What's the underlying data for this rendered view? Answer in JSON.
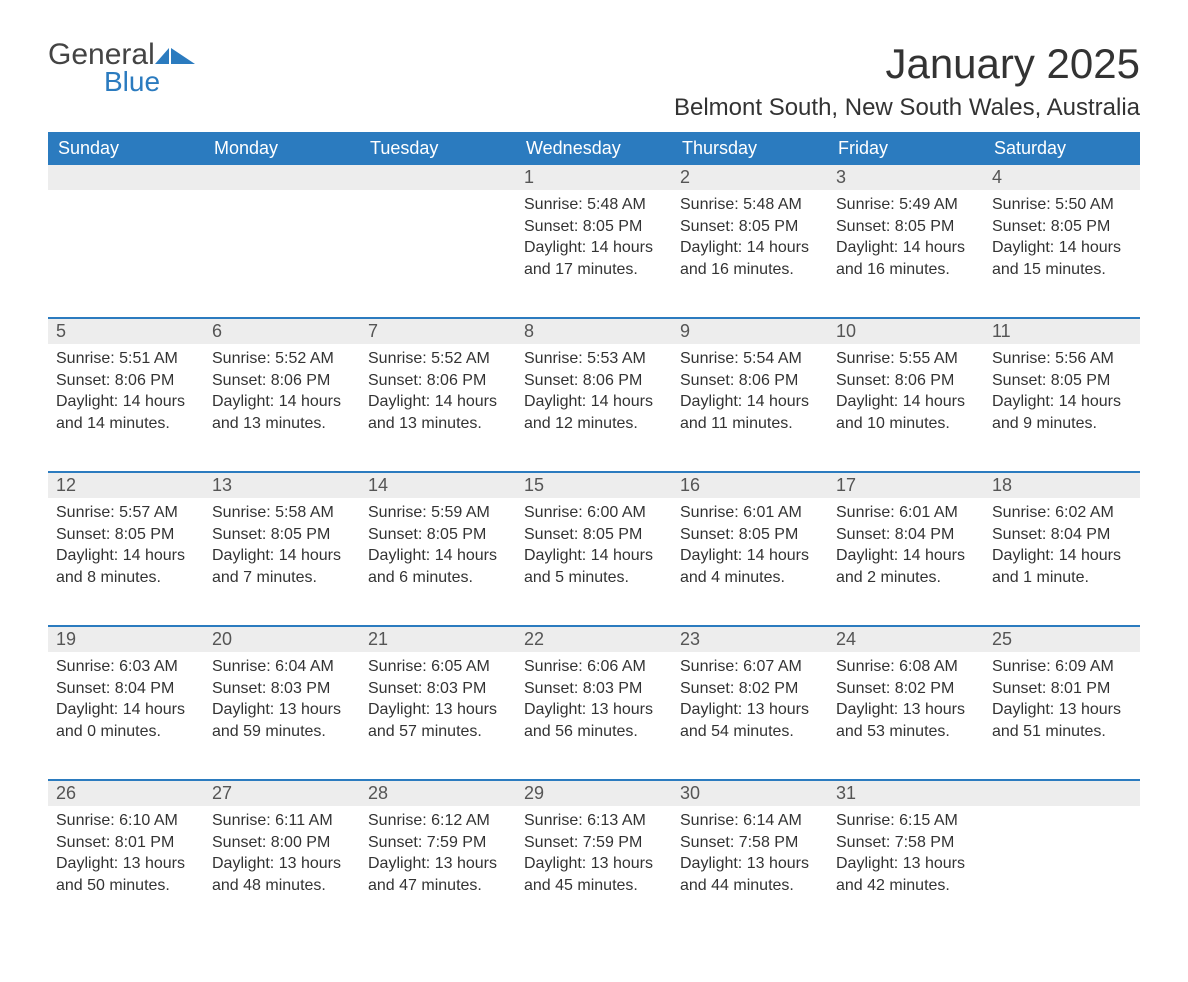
{
  "logo": {
    "word1": "General",
    "word2": "Blue"
  },
  "title": "January 2025",
  "location": "Belmont South, New South Wales, Australia",
  "colors": {
    "header_bg": "#2b7bbf",
    "header_text": "#ffffff",
    "daynum_bg": "#ededed",
    "week_divider": "#2b7bbf",
    "body_text": "#333333",
    "logo_blue": "#2b7bbf"
  },
  "day_headers": [
    "Sunday",
    "Monday",
    "Tuesday",
    "Wednesday",
    "Thursday",
    "Friday",
    "Saturday"
  ],
  "weeks": [
    [
      null,
      null,
      null,
      {
        "n": "1",
        "sunrise": "5:48 AM",
        "sunset": "8:05 PM",
        "daylight": "14 hours and 17 minutes."
      },
      {
        "n": "2",
        "sunrise": "5:48 AM",
        "sunset": "8:05 PM",
        "daylight": "14 hours and 16 minutes."
      },
      {
        "n": "3",
        "sunrise": "5:49 AM",
        "sunset": "8:05 PM",
        "daylight": "14 hours and 16 minutes."
      },
      {
        "n": "4",
        "sunrise": "5:50 AM",
        "sunset": "8:05 PM",
        "daylight": "14 hours and 15 minutes."
      }
    ],
    [
      {
        "n": "5",
        "sunrise": "5:51 AM",
        "sunset": "8:06 PM",
        "daylight": "14 hours and 14 minutes."
      },
      {
        "n": "6",
        "sunrise": "5:52 AM",
        "sunset": "8:06 PM",
        "daylight": "14 hours and 13 minutes."
      },
      {
        "n": "7",
        "sunrise": "5:52 AM",
        "sunset": "8:06 PM",
        "daylight": "14 hours and 13 minutes."
      },
      {
        "n": "8",
        "sunrise": "5:53 AM",
        "sunset": "8:06 PM",
        "daylight": "14 hours and 12 minutes."
      },
      {
        "n": "9",
        "sunrise": "5:54 AM",
        "sunset": "8:06 PM",
        "daylight": "14 hours and 11 minutes."
      },
      {
        "n": "10",
        "sunrise": "5:55 AM",
        "sunset": "8:06 PM",
        "daylight": "14 hours and 10 minutes."
      },
      {
        "n": "11",
        "sunrise": "5:56 AM",
        "sunset": "8:05 PM",
        "daylight": "14 hours and 9 minutes."
      }
    ],
    [
      {
        "n": "12",
        "sunrise": "5:57 AM",
        "sunset": "8:05 PM",
        "daylight": "14 hours and 8 minutes."
      },
      {
        "n": "13",
        "sunrise": "5:58 AM",
        "sunset": "8:05 PM",
        "daylight": "14 hours and 7 minutes."
      },
      {
        "n": "14",
        "sunrise": "5:59 AM",
        "sunset": "8:05 PM",
        "daylight": "14 hours and 6 minutes."
      },
      {
        "n": "15",
        "sunrise": "6:00 AM",
        "sunset": "8:05 PM",
        "daylight": "14 hours and 5 minutes."
      },
      {
        "n": "16",
        "sunrise": "6:01 AM",
        "sunset": "8:05 PM",
        "daylight": "14 hours and 4 minutes."
      },
      {
        "n": "17",
        "sunrise": "6:01 AM",
        "sunset": "8:04 PM",
        "daylight": "14 hours and 2 minutes."
      },
      {
        "n": "18",
        "sunrise": "6:02 AM",
        "sunset": "8:04 PM",
        "daylight": "14 hours and 1 minute."
      }
    ],
    [
      {
        "n": "19",
        "sunrise": "6:03 AM",
        "sunset": "8:04 PM",
        "daylight": "14 hours and 0 minutes."
      },
      {
        "n": "20",
        "sunrise": "6:04 AM",
        "sunset": "8:03 PM",
        "daylight": "13 hours and 59 minutes."
      },
      {
        "n": "21",
        "sunrise": "6:05 AM",
        "sunset": "8:03 PM",
        "daylight": "13 hours and 57 minutes."
      },
      {
        "n": "22",
        "sunrise": "6:06 AM",
        "sunset": "8:03 PM",
        "daylight": "13 hours and 56 minutes."
      },
      {
        "n": "23",
        "sunrise": "6:07 AM",
        "sunset": "8:02 PM",
        "daylight": "13 hours and 54 minutes."
      },
      {
        "n": "24",
        "sunrise": "6:08 AM",
        "sunset": "8:02 PM",
        "daylight": "13 hours and 53 minutes."
      },
      {
        "n": "25",
        "sunrise": "6:09 AM",
        "sunset": "8:01 PM",
        "daylight": "13 hours and 51 minutes."
      }
    ],
    [
      {
        "n": "26",
        "sunrise": "6:10 AM",
        "sunset": "8:01 PM",
        "daylight": "13 hours and 50 minutes."
      },
      {
        "n": "27",
        "sunrise": "6:11 AM",
        "sunset": "8:00 PM",
        "daylight": "13 hours and 48 minutes."
      },
      {
        "n": "28",
        "sunrise": "6:12 AM",
        "sunset": "7:59 PM",
        "daylight": "13 hours and 47 minutes."
      },
      {
        "n": "29",
        "sunrise": "6:13 AM",
        "sunset": "7:59 PM",
        "daylight": "13 hours and 45 minutes."
      },
      {
        "n": "30",
        "sunrise": "6:14 AM",
        "sunset": "7:58 PM",
        "daylight": "13 hours and 44 minutes."
      },
      {
        "n": "31",
        "sunrise": "6:15 AM",
        "sunset": "7:58 PM",
        "daylight": "13 hours and 42 minutes."
      },
      null
    ]
  ],
  "labels": {
    "sunrise": "Sunrise: ",
    "sunset": "Sunset: ",
    "daylight": "Daylight: "
  }
}
